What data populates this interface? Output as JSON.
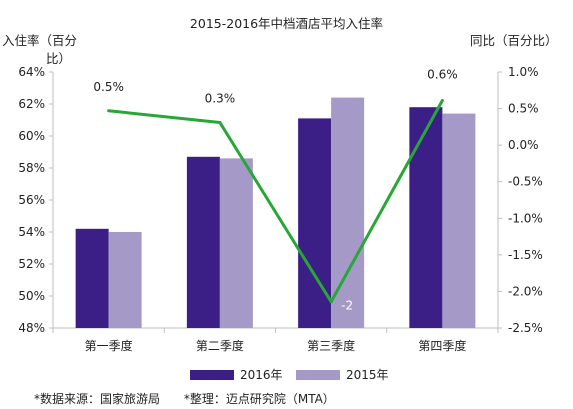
{
  "chart_data": {
    "type": "bar",
    "title": "2015-2016年中档酒店平均入住率",
    "ylabel": "入住率（百分比）",
    "ylabel_line1": "入住率（百分",
    "ylabel_line2": "比）",
    "ylabel_right": "同比（百分比）",
    "categories": [
      "第一季度",
      "第二季度",
      "第三季度",
      "第四季度"
    ],
    "ylim": [
      48,
      64
    ],
    "yticks": [
      "48%",
      "50%",
      "52%",
      "54%",
      "56%",
      "58%",
      "60%",
      "62%",
      "64%"
    ],
    "ylim_right": [
      -2.5,
      1.0
    ],
    "yticks_right": [
      "-2.5%",
      "-2.0%",
      "-1.5%",
      "-1.0%",
      "-0.5%",
      "0.0%",
      "0.5%",
      "1.0%"
    ],
    "series": [
      {
        "name": "2016年",
        "values": [
          54.2,
          58.7,
          61.1,
          61.8
        ],
        "color": "#3b1f86"
      },
      {
        "name": "2015年",
        "values": [
          54.0,
          58.6,
          62.4,
          61.4
        ],
        "color": "#a599c8"
      }
    ],
    "yoy": {
      "values": [
        0.47,
        0.31,
        -2.14,
        0.61
      ],
      "labels": [
        "0.5%",
        "0.3%",
        "-2",
        "0.6%"
      ],
      "color": "#27a836",
      "axis": "right"
    },
    "legend_position": "bottom",
    "grid": false
  },
  "footer": {
    "source": "*数据来源：国家旅游局",
    "compiled": "*整理：迈点研究院（MTA）"
  }
}
